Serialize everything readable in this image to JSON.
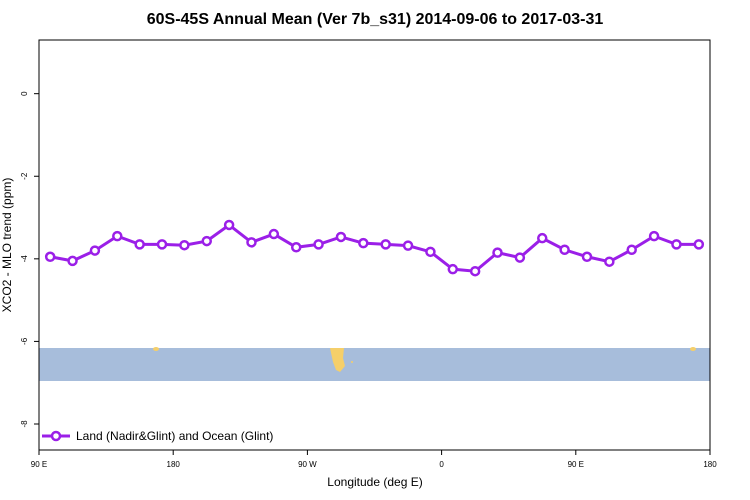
{
  "chart_data": {
    "type": "line",
    "title": "60S-45S Annual Mean (Ver 7b_s31)   2014-09-06 to 2017-03-31",
    "x_label": "Longitude (deg E)",
    "y_label": "XCO2 - MLO trend (ppm)",
    "x": [
      97.5,
      112.5,
      127.5,
      142.5,
      157.5,
      172.5,
      187.5,
      202.5,
      217.5,
      232.5,
      247.5,
      262.5,
      277.5,
      292.5,
      307.5,
      322.5,
      337.5,
      352.5,
      367.5,
      382.5,
      397.5,
      412.5,
      427.5,
      442.5,
      457.5,
      472.5,
      487.5,
      502.5,
      517.5,
      532.5
    ],
    "series": [
      {
        "name": "Land (Nadir&Glint) and Ocean (Glint)",
        "color": "#9b1fe8",
        "values": [
          -3.95,
          -4.05,
          -3.8,
          -3.45,
          -3.65,
          -3.65,
          -3.67,
          -3.57,
          -3.18,
          -3.6,
          -3.4,
          -3.72,
          -3.65,
          -3.47,
          -3.62,
          -3.65,
          -3.68,
          -3.83,
          -4.25,
          -4.3,
          -3.85,
          -3.97,
          -3.5,
          -3.78,
          -3.95,
          -4.07,
          -3.78,
          -3.45,
          -3.65,
          -3.65
        ]
      }
    ],
    "xlim": [
      90,
      540
    ],
    "xticks": [
      {
        "value": 90,
        "label": "90 E"
      },
      {
        "value": 180,
        "label": "180"
      },
      {
        "value": 270,
        "label": "90 W"
      },
      {
        "value": 360,
        "label": "0"
      },
      {
        "value": 450,
        "label": "90 E"
      },
      {
        "value": 540,
        "label": "180"
      }
    ],
    "ylim": [
      -8.63,
      1.3
    ],
    "yticks": [
      -8,
      -6,
      -4,
      -2,
      0
    ],
    "legend": "bottom-left"
  }
}
